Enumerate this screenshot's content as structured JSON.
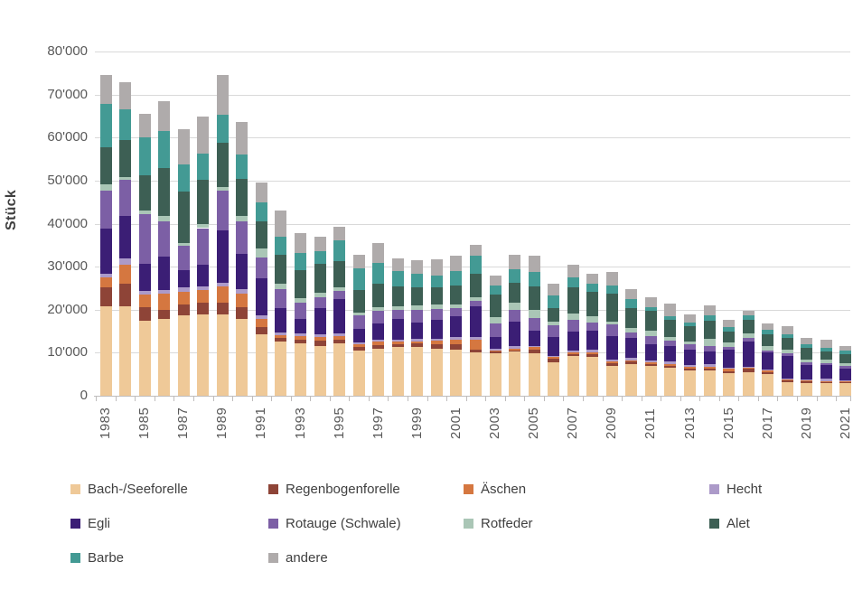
{
  "chart_data": {
    "type": "bar",
    "stacked": true,
    "title": "",
    "ylabel": "Stück",
    "xlabel": "",
    "ylim": [
      0,
      80000
    ],
    "ytick_step": 10000,
    "ytick_labels": [
      "0",
      "10'000",
      "20'000",
      "30'000",
      "40'000",
      "50'000",
      "60'000",
      "70'000",
      "80'000"
    ],
    "grid": "horizontal-only",
    "legend_position": "bottom",
    "categories": [
      "1983",
      "1984",
      "1985",
      "1986",
      "1987",
      "1988",
      "1989",
      "1990",
      "1991",
      "1992",
      "1993",
      "1994",
      "1995",
      "1996",
      "1997",
      "1998",
      "1999",
      "2000",
      "2001",
      "2002",
      "2003",
      "2004",
      "2005",
      "2006",
      "2007",
      "2008",
      "2009",
      "2010",
      "2011",
      "2012",
      "2013",
      "2014",
      "2015",
      "2016",
      "2017",
      "2018",
      "2019",
      "2020",
      "2021"
    ],
    "xtick_labels": [
      "1983",
      "1985",
      "1987",
      "1989",
      "1991",
      "1993",
      "1995",
      "1997",
      "1999",
      "2001",
      "2003",
      "2005",
      "2007",
      "2009",
      "2011",
      "2013",
      "2015",
      "2017",
      "2019",
      "2021"
    ],
    "series": [
      {
        "name": "Bach-/Seeforelle",
        "color": "#efc998",
        "values": [
          20800,
          20800,
          17400,
          17800,
          18700,
          18900,
          18900,
          17900,
          14200,
          12550,
          12100,
          11600,
          12100,
          10500,
          11000,
          11400,
          11400,
          11000,
          10800,
          10150,
          9950,
          10250,
          9850,
          7750,
          9300,
          9100,
          7000,
          7350,
          7000,
          6500,
          5850,
          5950,
          5150,
          5500,
          5000,
          3100,
          2950,
          2900,
          2900
        ]
      },
      {
        "name": "Regenbogenforelle",
        "color": "#8e4437",
        "values": [
          4400,
          5200,
          3100,
          2100,
          2450,
          2800,
          2700,
          2600,
          1750,
          900,
          900,
          1150,
          900,
          900,
          750,
          600,
          850,
          950,
          1150,
          600,
          300,
          350,
          950,
          850,
          400,
          650,
          600,
          600,
          450,
          500,
          550,
          450,
          600,
          700,
          450,
          450,
          350,
          300,
          200
        ]
      },
      {
        "name": "Äschen",
        "color": "#d57740",
        "values": [
          2300,
          4500,
          3100,
          3800,
          3100,
          2800,
          3800,
          3300,
          1900,
          700,
          800,
          950,
          800,
          650,
          750,
          650,
          400,
          850,
          1150,
          2200,
          300,
          350,
          450,
          350,
          350,
          400,
          350,
          300,
          350,
          400,
          300,
          300,
          500,
          300,
          350,
          250,
          200,
          250,
          200
        ]
      },
      {
        "name": "Hecht",
        "color": "#ac9ac9",
        "values": [
          900,
          1400,
          800,
          900,
          850,
          850,
          900,
          900,
          900,
          500,
          700,
          500,
          600,
          400,
          500,
          400,
          500,
          500,
          500,
          700,
          300,
          600,
          350,
          350,
          550,
          600,
          450,
          500,
          400,
          600,
          450,
          550,
          200,
          300,
          350,
          250,
          300,
          500,
          300
        ]
      },
      {
        "name": "Egli",
        "color": "#3b1e75",
        "values": [
          10500,
          9900,
          6200,
          7700,
          4000,
          5200,
          12100,
          8200,
          8450,
          5750,
          3450,
          6200,
          8000,
          3150,
          3750,
          4800,
          3850,
          4250,
          4800,
          7200,
          2700,
          5750,
          3550,
          4250,
          4250,
          4300,
          5400,
          4600,
          3750,
          3600,
          3650,
          3000,
          4350,
          5850,
          4000,
          5100,
          3350,
          3100,
          2800
        ]
      },
      {
        "name": "Rotauge (Schwale)",
        "color": "#7c5fa5",
        "values": [
          8700,
          8400,
          11500,
          8200,
          5800,
          8400,
          9300,
          7700,
          4900,
          4400,
          3650,
          2500,
          1900,
          3050,
          3000,
          2200,
          3000,
          2600,
          1900,
          1150,
          3150,
          2700,
          3000,
          2900,
          2800,
          1900,
          2700,
          1450,
          1850,
          1250,
          1250,
          1400,
          600,
          700,
          350,
          700,
          600,
          600,
          450
        ]
      },
      {
        "name": "Rotfeder",
        "color": "#aac6b6",
        "values": [
          1500,
          600,
          900,
          1250,
          550,
          950,
          900,
          1150,
          2100,
          1200,
          1100,
          1050,
          850,
          700,
          850,
          750,
          1050,
          1050,
          850,
          950,
          1650,
          1550,
          1750,
          750,
          1400,
          1550,
          650,
          950,
          1250,
          700,
          650,
          1600,
          950,
          1050,
          1050,
          800,
          700,
          650,
          800
        ]
      },
      {
        "name": "Alet",
        "color": "#3d5f54",
        "values": [
          8600,
          8700,
          8200,
          11200,
          11900,
          10200,
          10100,
          8650,
          6250,
          6750,
          6450,
          6650,
          6150,
          5300,
          5500,
          4600,
          4150,
          4050,
          4500,
          5400,
          5200,
          4600,
          5500,
          3250,
          6250,
          5600,
          6650,
          4700,
          4600,
          4150,
          3450,
          4250,
          2500,
          3250,
          2800,
          2700,
          2600,
          1900,
          1950
        ]
      },
      {
        "name": "Barbe",
        "color": "#439a94",
        "values": [
          10200,
          7000,
          8900,
          8600,
          6400,
          6100,
          6600,
          5600,
          4500,
          4250,
          3950,
          2900,
          4800,
          5000,
          4700,
          3650,
          3150,
          2600,
          3250,
          4250,
          2100,
          3250,
          3450,
          2800,
          2200,
          2000,
          1750,
          2000,
          950,
          850,
          850,
          1150,
          1050,
          950,
          950,
          950,
          850,
          850,
          1000
        ]
      },
      {
        "name": "andere",
        "color": "#afabab",
        "values": [
          6700,
          6400,
          5400,
          6800,
          8100,
          8600,
          9300,
          7600,
          4500,
          5950,
          4600,
          3400,
          3100,
          3150,
          4700,
          2900,
          3150,
          3850,
          3750,
          2500,
          2300,
          3350,
          3650,
          2800,
          3000,
          2200,
          3150,
          2400,
          2300,
          2800,
          1900,
          2300,
          1750,
          1150,
          1550,
          1800,
          1550,
          1900,
          1050
        ]
      }
    ],
    "colors": {
      "gridline": "#d9d9d9",
      "axis_line": "#bfbdbd",
      "tick_text": "#595959",
      "legend_text": "#404040",
      "axis_title_text": "#3f3f3f",
      "background": "#ffffff"
    }
  }
}
